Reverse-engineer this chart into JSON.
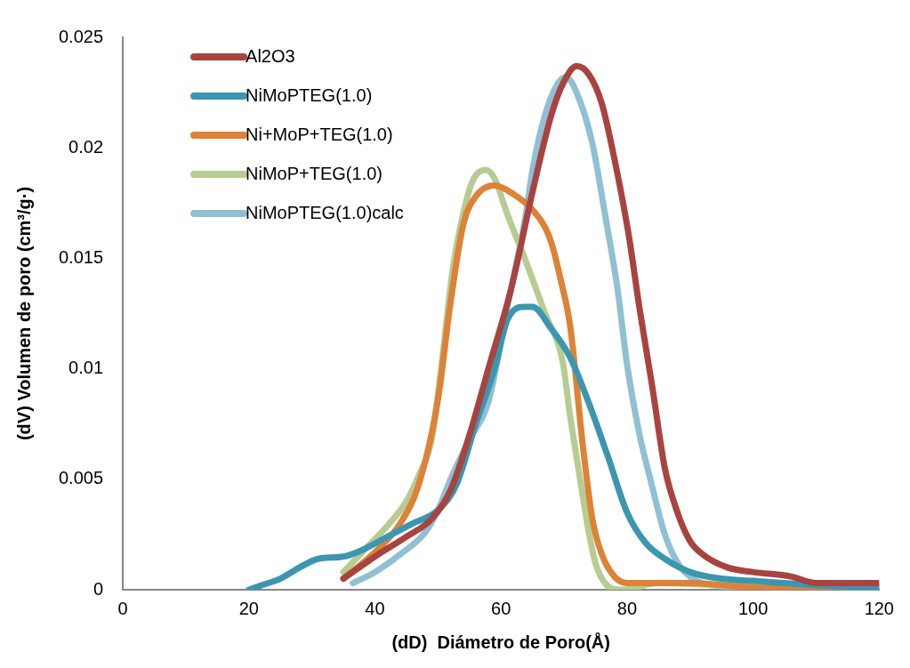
{
  "chart_data": {
    "type": "line",
    "xlabel": "(dD)  Diámetro de Poro(Å)",
    "ylabel": "(dV) Volumen de poro (cm³/g·)",
    "xlim": [
      0,
      120
    ],
    "xticks": [
      0,
      20,
      40,
      60,
      80,
      100,
      120
    ],
    "ylim": [
      0,
      0.025
    ],
    "yticks": [
      0,
      0.005,
      0.01,
      0.015,
      0.02,
      0.025
    ],
    "legend": "top left",
    "marker": "none",
    "line_style": "solid",
    "series": [
      {
        "name": "Al2O3",
        "color": "#a84340",
        "x": [
          35,
          40,
          45,
          49,
          52,
          55,
          58,
          61.6,
          65,
          68,
          70,
          72,
          74,
          76,
          78,
          80.3,
          82,
          84,
          86,
          88,
          90,
          92,
          96,
          100,
          106,
          110,
          120
        ],
        "values": [
          0.0005,
          0.0015,
          0.0024,
          0.0032,
          0.0045,
          0.007,
          0.01,
          0.0136,
          0.018,
          0.0215,
          0.023,
          0.0237,
          0.0233,
          0.022,
          0.0195,
          0.016,
          0.0127,
          0.0092,
          0.0055,
          0.0035,
          0.0022,
          0.0016,
          0.001,
          0.0008,
          0.0006,
          0.0003,
          0.0003
        ]
      },
      {
        "name": "NiMoPTEG(1.0)",
        "color": "#3c96b0",
        "x": [
          20,
          22,
          25,
          28,
          31,
          35,
          38,
          42,
          46,
          50,
          53,
          56,
          59,
          61,
          63.7,
          65,
          68,
          71,
          74,
          77,
          80,
          83,
          86,
          90,
          95,
          100,
          110,
          120
        ],
        "values": [
          0,
          0.0002,
          0.0005,
          0.001,
          0.0014,
          0.0015,
          0.0018,
          0.0024,
          0.003,
          0.0036,
          0.0048,
          0.0075,
          0.01,
          0.0122,
          0.0128,
          0.0128,
          0.0118,
          0.0105,
          0.0084,
          0.006,
          0.0035,
          0.0021,
          0.0014,
          0.0008,
          0.0005,
          0.0004,
          0.0002,
          0.0001
        ]
      },
      {
        "name": "Ni+MoP+TEG(1.0)",
        "color": "#dd8236",
        "x": [
          35,
          40,
          44,
          47,
          50,
          52,
          54,
          56,
          59,
          62,
          65,
          67,
          68,
          69.5,
          71,
          73,
          74.5,
          76,
          78,
          80,
          90,
          100,
          120
        ],
        "values": [
          0.0005,
          0.0017,
          0.003,
          0.0048,
          0.0086,
          0.013,
          0.0165,
          0.0178,
          0.0183,
          0.0179,
          0.0172,
          0.0164,
          0.0157,
          0.014,
          0.0119,
          0.0065,
          0.0032,
          0.0016,
          0.0006,
          0.0003,
          0.0003,
          0.0001,
          0
        ]
      },
      {
        "name": "NiMoP+TEG(1.0)",
        "color": "#b6cc92",
        "x": [
          35,
          38,
          42,
          45,
          47,
          49,
          50.5,
          52.3,
          54,
          55.5,
          57.6,
          59,
          61,
          63.9,
          67,
          69.8,
          71,
          72,
          73,
          74,
          75,
          76.5,
          79,
          85,
          95,
          120
        ],
        "values": [
          0.0008,
          0.0017,
          0.0029,
          0.004,
          0.0052,
          0.0068,
          0.01,
          0.0144,
          0.017,
          0.0185,
          0.019,
          0.0186,
          0.017,
          0.0149,
          0.0125,
          0.0103,
          0.0078,
          0.006,
          0.0042,
          0.0025,
          0.0012,
          0.0003,
          0,
          0.0003,
          0.0002,
          0
        ]
      },
      {
        "name": "NiMoPTEG(1.0)calc",
        "color": "#8fc0d4",
        "x": [
          36.5,
          40,
          44,
          48,
          50,
          52,
          55,
          58.1,
          61,
          63.9,
          65,
          67,
          69,
          70.3,
          72,
          74.5,
          76.5,
          78.5,
          80,
          82,
          83.7,
          86,
          88.3,
          92,
          100,
          120
        ],
        "values": [
          0.0003,
          0.0008,
          0.0016,
          0.0026,
          0.0036,
          0.005,
          0.0068,
          0.0086,
          0.0128,
          0.0169,
          0.019,
          0.0215,
          0.0229,
          0.0232,
          0.0225,
          0.0202,
          0.017,
          0.0136,
          0.0102,
          0.007,
          0.005,
          0.0025,
          0.0011,
          0.0003,
          0.0001,
          0.0001
        ]
      }
    ]
  }
}
